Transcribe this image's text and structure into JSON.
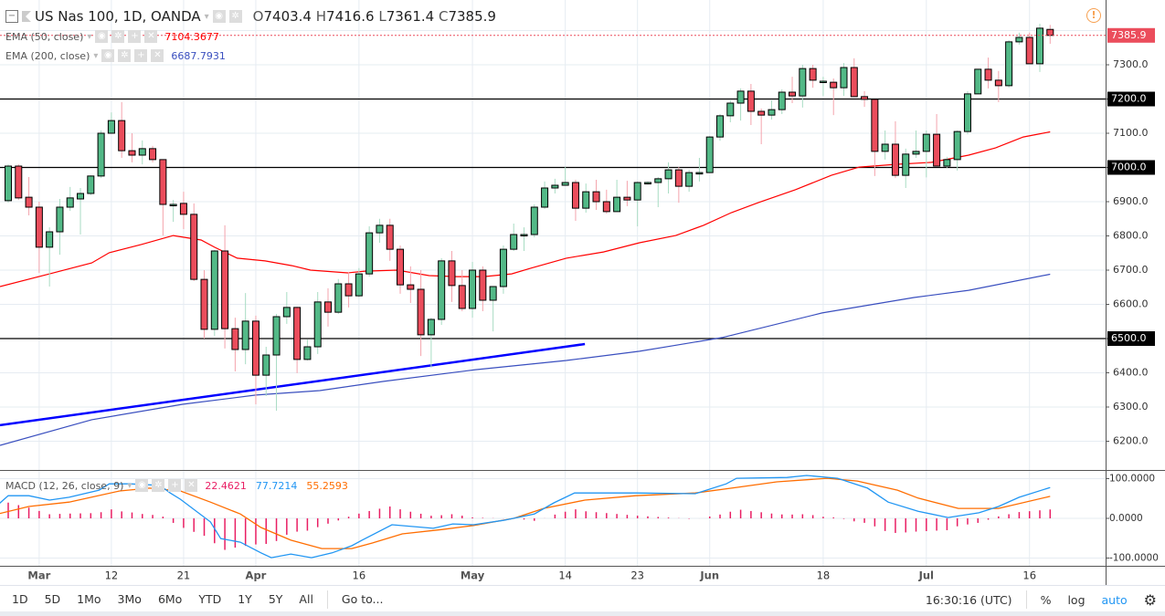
{
  "header": {
    "symbol": "US Nas 100, 1D, OANDA",
    "open_label": "O",
    "open": "7403.4",
    "high_label": "H",
    "high": "7416.6",
    "low_label": "L",
    "low": "7361.4",
    "close_label": "C",
    "close": "7385.9"
  },
  "indicators": {
    "ema50": {
      "label": "EMA (50, close)",
      "value": "7104.3677",
      "color": "#ff0000"
    },
    "ema200": {
      "label": "EMA (200, close)",
      "value": "6687.7931",
      "color": "#3a4fbf"
    },
    "macd": {
      "label": "MACD (12, 26, close, 9)",
      "hist_value": "22.4621",
      "macd_value": "77.7214",
      "signal_value": "55.2593",
      "hist_color": "#e91e63",
      "macd_color": "#2196f3",
      "signal_color": "#ff6d00"
    }
  },
  "price_axis": {
    "labels": [
      "6200.0",
      "6300.0",
      "6400.0",
      "6500.0",
      "6600.0",
      "6700.0",
      "6800.0",
      "6900.0",
      "7000.0",
      "7100.0",
      "7200.0",
      "7300.0"
    ],
    "current_price": "7385.9",
    "level_labels": [
      "7200.0",
      "7000.0",
      "6500.0"
    ]
  },
  "macd_axis": {
    "labels": [
      "100.0000",
      "0.0000",
      "-100.0000"
    ]
  },
  "time_axis": [
    {
      "label": "Mar",
      "i": 3,
      "bold": true
    },
    {
      "label": "12",
      "i": 10
    },
    {
      "label": "21",
      "i": 17
    },
    {
      "label": "Apr",
      "i": 24,
      "bold": true
    },
    {
      "label": "16",
      "i": 34
    },
    {
      "label": "May",
      "i": 45,
      "bold": true
    },
    {
      "label": "14",
      "i": 54
    },
    {
      "label": "23",
      "i": 61
    },
    {
      "label": "Jun",
      "i": 68,
      "bold": true
    },
    {
      "label": "18",
      "i": 79
    },
    {
      "label": "Jul",
      "i": 89,
      "bold": true
    },
    {
      "label": "16",
      "i": 99
    }
  ],
  "toolbar": {
    "ranges": [
      "1D",
      "5D",
      "1Mo",
      "3Mo",
      "6Mo",
      "YTD",
      "1Y",
      "5Y",
      "All"
    ],
    "goto": "Go to...",
    "time": "16:30:16 (UTC)",
    "percent": "%",
    "log": "log",
    "auto": "auto"
  },
  "colors": {
    "up": "#53b987",
    "down": "#eb4d5c",
    "level": "#000000",
    "trendline": "#0000ff"
  },
  "chart_data": {
    "type": "candlestick",
    "ohlc": [
      [
        6903,
        7009,
        6897,
        7004
      ],
      [
        7004,
        7009,
        6905,
        6911
      ],
      [
        6913,
        6972,
        6860,
        6884
      ],
      [
        6884,
        6900,
        6692,
        6767
      ],
      [
        6767,
        6825,
        6652,
        6812
      ],
      [
        6812,
        6908,
        6745,
        6884
      ],
      [
        6884,
        6943,
        6873,
        6911
      ],
      [
        6908,
        6940,
        6804,
        6924
      ],
      [
        6924,
        6977,
        6919,
        6975
      ],
      [
        6975,
        7108,
        6969,
        7100
      ],
      [
        7100,
        7161,
        7100,
        7137
      ],
      [
        7137,
        7191,
        7028,
        7049
      ],
      [
        7049,
        7100,
        7015,
        7036
      ],
      [
        7036,
        7079,
        7009,
        7055
      ],
      [
        7055,
        7063,
        7015,
        7023
      ],
      [
        7023,
        7023,
        6801,
        6892
      ],
      [
        6892,
        6905,
        6841,
        6892
      ],
      [
        6895,
        6929,
        6820,
        6863
      ],
      [
        6863,
        6895,
        6668,
        6673
      ],
      [
        6673,
        6700,
        6500,
        6527
      ],
      [
        6527,
        6759,
        6508,
        6756
      ],
      [
        6756,
        6831,
        6471,
        6529
      ],
      [
        6529,
        6561,
        6404,
        6468
      ],
      [
        6468,
        6633,
        6425,
        6551
      ],
      [
        6551,
        6567,
        6308,
        6393
      ],
      [
        6393,
        6476,
        6332,
        6452
      ],
      [
        6452,
        6572,
        6289,
        6564
      ],
      [
        6564,
        6636,
        6543,
        6591
      ],
      [
        6591,
        6593,
        6399,
        6439
      ],
      [
        6439,
        6497,
        6436,
        6476
      ],
      [
        6476,
        6636,
        6455,
        6607
      ],
      [
        6607,
        6647,
        6535,
        6577
      ],
      [
        6577,
        6674,
        6572,
        6660
      ],
      [
        6660,
        6695,
        6591,
        6625
      ],
      [
        6625,
        6706,
        6620,
        6689
      ],
      [
        6689,
        6828,
        6681,
        6809
      ],
      [
        6809,
        6850,
        6780,
        6831
      ],
      [
        6831,
        6850,
        6727,
        6761
      ],
      [
        6761,
        6772,
        6631,
        6657
      ],
      [
        6657,
        6711,
        6604,
        6644
      ],
      [
        6644,
        6700,
        6449,
        6511
      ],
      [
        6511,
        6561,
        6415,
        6556
      ],
      [
        6556,
        6735,
        6540,
        6727
      ],
      [
        6727,
        6756,
        6607,
        6655
      ],
      [
        6655,
        6700,
        6580,
        6588
      ],
      [
        6588,
        6724,
        6561,
        6700
      ],
      [
        6700,
        6711,
        6580,
        6612
      ],
      [
        6612,
        6652,
        6521,
        6652
      ],
      [
        6652,
        6772,
        6631,
        6761
      ],
      [
        6761,
        6836,
        6756,
        6804
      ],
      [
        6804,
        6825,
        6756,
        6804
      ],
      [
        6804,
        6892,
        6796,
        6884
      ],
      [
        6884,
        6959,
        6879,
        6940
      ],
      [
        6940,
        6967,
        6924,
        6948
      ],
      [
        6948,
        7001,
        6948,
        6956
      ],
      [
        6956,
        6964,
        6844,
        6881
      ],
      [
        6881,
        6953,
        6868,
        6929
      ],
      [
        6929,
        6964,
        6876,
        6900
      ],
      [
        6900,
        6935,
        6865,
        6871
      ],
      [
        6871,
        6964,
        6871,
        6913
      ],
      [
        6913,
        6961,
        6887,
        6905
      ],
      [
        6905,
        6959,
        6828,
        6956
      ],
      [
        6956,
        6959,
        6950,
        6956
      ],
      [
        6956,
        6972,
        6884,
        6967
      ],
      [
        6967,
        7015,
        6924,
        6993
      ],
      [
        6993,
        7001,
        6897,
        6945
      ],
      [
        6945,
        6993,
        6929,
        6985
      ],
      [
        6985,
        7028,
        6959,
        6985
      ],
      [
        6985,
        7092,
        6985,
        7089
      ],
      [
        7089,
        7156,
        7078,
        7151
      ],
      [
        7151,
        7196,
        7132,
        7188
      ],
      [
        7188,
        7231,
        7137,
        7223
      ],
      [
        7223,
        7244,
        7124,
        7164
      ],
      [
        7164,
        7172,
        7068,
        7153
      ],
      [
        7153,
        7196,
        7140,
        7169
      ],
      [
        7169,
        7228,
        7156,
        7220
      ],
      [
        7220,
        7265,
        7188,
        7209
      ],
      [
        7209,
        7300,
        7175,
        7289
      ],
      [
        7289,
        7300,
        7233,
        7255
      ],
      [
        7252,
        7265,
        7209,
        7252
      ],
      [
        7249,
        7260,
        7153,
        7233
      ],
      [
        7233,
        7305,
        7209,
        7292
      ],
      [
        7292,
        7319,
        7207,
        7207
      ],
      [
        7207,
        7223,
        7177,
        7199
      ],
      [
        7199,
        7199,
        6975,
        7047
      ],
      [
        7047,
        7108,
        7023,
        7068
      ],
      [
        7068,
        7135,
        6969,
        6977
      ],
      [
        6977,
        7055,
        6940,
        7039
      ],
      [
        7039,
        7108,
        7028,
        7047
      ],
      [
        7047,
        7108,
        6971,
        7097
      ],
      [
        7097,
        7156,
        7004,
        7004
      ],
      [
        7004,
        7031,
        6999,
        7023
      ],
      [
        7023,
        7108,
        6991,
        7105
      ],
      [
        7105,
        7223,
        7097,
        7215
      ],
      [
        7215,
        7287,
        7215,
        7287
      ],
      [
        7287,
        7321,
        7231,
        7255
      ],
      [
        7255,
        7282,
        7191,
        7239
      ],
      [
        7239,
        7372,
        7233,
        7367
      ],
      [
        7367,
        7394,
        7359,
        7380
      ],
      [
        7380,
        7394,
        7303,
        7303
      ],
      [
        7303,
        7420,
        7279,
        7407
      ],
      [
        7403.4,
        7416.6,
        7361.4,
        7385.9
      ]
    ],
    "ema50": [
      [
        -0.8,
        6652
      ],
      [
        4.1,
        6690
      ],
      [
        8.1,
        6721
      ],
      [
        9.8,
        6751
      ],
      [
        12.9,
        6775
      ],
      [
        16,
        6801
      ],
      [
        18.7,
        6788
      ],
      [
        20,
        6767
      ],
      [
        22.2,
        6735
      ],
      [
        24.9,
        6727
      ],
      [
        27.5,
        6713
      ],
      [
        29.3,
        6700
      ],
      [
        32.9,
        6692
      ],
      [
        34.6,
        6697
      ],
      [
        37.7,
        6700
      ],
      [
        40.8,
        6684
      ],
      [
        43.5,
        6681
      ],
      [
        46.1,
        6681
      ],
      [
        48.8,
        6689
      ],
      [
        50.6,
        6705
      ],
      [
        54.1,
        6735
      ],
      [
        57.7,
        6753
      ],
      [
        61.2,
        6780
      ],
      [
        64.7,
        6801
      ],
      [
        67.4,
        6831
      ],
      [
        70.1,
        6868
      ],
      [
        72.7,
        6897
      ],
      [
        76.3,
        6935
      ],
      [
        79.8,
        6977
      ],
      [
        82.5,
        7001
      ],
      [
        86,
        7009
      ],
      [
        89.5,
        7015
      ],
      [
        93.1,
        7036
      ],
      [
        95.7,
        7057
      ],
      [
        98.4,
        7089
      ],
      [
        101,
        7104
      ]
    ],
    "ema200": [
      [
        -0.8,
        6188
      ],
      [
        8.1,
        6263
      ],
      [
        16.9,
        6308
      ],
      [
        24,
        6335
      ],
      [
        30.2,
        6348
      ],
      [
        36.4,
        6375
      ],
      [
        45.3,
        6409
      ],
      [
        54.1,
        6436
      ],
      [
        61.2,
        6463
      ],
      [
        69.2,
        6503
      ],
      [
        78.9,
        6575
      ],
      [
        87.8,
        6620
      ],
      [
        93.1,
        6641
      ],
      [
        101,
        6688
      ]
    ],
    "levels": [
      7200,
      7000,
      6500
    ],
    "trendline": [
      [
        -0.8,
        6247
      ],
      [
        55.9,
        6484
      ]
    ],
    "ylim": [
      6170,
      7400
    ],
    "macd": [
      [
        -1,
        34
      ],
      [
        0,
        57
      ],
      [
        2,
        57
      ],
      [
        4,
        46
      ],
      [
        5.9,
        53
      ],
      [
        8.8,
        71
      ],
      [
        9.8,
        87
      ],
      [
        11.8,
        87
      ],
      [
        14.7,
        83
      ],
      [
        15.7,
        64
      ],
      [
        16.7,
        48
      ],
      [
        19.6,
        -9
      ],
      [
        20.6,
        -51
      ],
      [
        22.5,
        -60
      ],
      [
        24.5,
        -87
      ],
      [
        25.5,
        -99
      ],
      [
        27.4,
        -90
      ],
      [
        29.4,
        -99
      ],
      [
        31.4,
        -87
      ],
      [
        33.3,
        -69
      ],
      [
        34.3,
        -55
      ],
      [
        37.2,
        -16
      ],
      [
        41.2,
        -25
      ],
      [
        43.1,
        -14
      ],
      [
        45.1,
        -16
      ],
      [
        48,
        -5
      ],
      [
        51,
        11
      ],
      [
        52.9,
        39
      ],
      [
        54.9,
        64
      ],
      [
        60.8,
        64
      ],
      [
        66.6,
        62
      ],
      [
        69.6,
        87
      ],
      [
        70.6,
        101
      ],
      [
        75.5,
        103
      ],
      [
        77.4,
        108
      ],
      [
        80.4,
        101
      ],
      [
        83.3,
        76
      ],
      [
        85.3,
        41
      ],
      [
        88.2,
        18
      ],
      [
        91.1,
        2
      ],
      [
        94.1,
        14
      ],
      [
        96,
        30
      ],
      [
        98,
        53
      ],
      [
        101,
        77.7
      ]
    ],
    "signal": [
      [
        -1,
        11
      ],
      [
        2,
        30
      ],
      [
        5.9,
        41
      ],
      [
        10.8,
        69
      ],
      [
        13.7,
        76
      ],
      [
        16.7,
        69
      ],
      [
        19.6,
        41
      ],
      [
        22.5,
        11
      ],
      [
        24.5,
        -23
      ],
      [
        27.4,
        -55
      ],
      [
        30.4,
        -76
      ],
      [
        33.3,
        -76
      ],
      [
        35.3,
        -62
      ],
      [
        38.2,
        -39
      ],
      [
        42.1,
        -28
      ],
      [
        45.1,
        -18
      ],
      [
        49,
        0
      ],
      [
        51.9,
        25
      ],
      [
        55.9,
        46
      ],
      [
        60.8,
        57
      ],
      [
        66.6,
        64
      ],
      [
        70.6,
        78
      ],
      [
        74.5,
        92
      ],
      [
        79.4,
        101
      ],
      [
        82.3,
        94
      ],
      [
        86.2,
        71
      ],
      [
        88.2,
        51
      ],
      [
        92.1,
        25
      ],
      [
        96,
        25
      ],
      [
        101,
        55.3
      ]
    ]
  }
}
